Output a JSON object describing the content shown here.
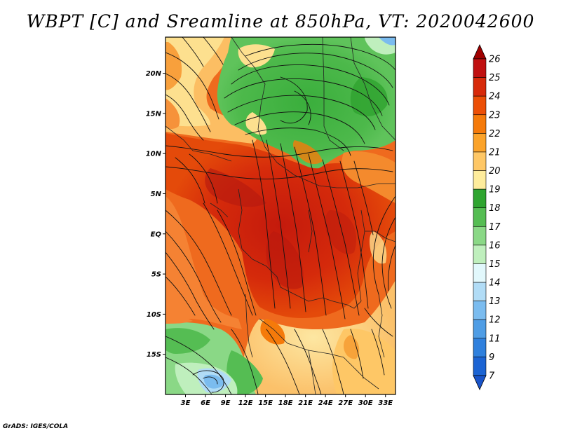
{
  "title": "WBPT [C] and Sreamline at 850hPa, VT: 2020042600",
  "footer": "GrADS: IGES/COLA",
  "map": {
    "lat_labels": [
      "20N",
      "15N",
      "10N",
      "5N",
      "EQ",
      "5S",
      "10S",
      "15S"
    ],
    "lon_labels": [
      "3E",
      "6E",
      "9E",
      "12E",
      "15E",
      "18E",
      "21E",
      "24E",
      "27E",
      "30E",
      "33E"
    ],
    "lat_range": [
      -20,
      24.5
    ],
    "lon_range": [
      0,
      34.5
    ]
  },
  "colorbar": {
    "levels": [
      "26",
      "25",
      "24",
      "23",
      "22",
      "21",
      "20",
      "19",
      "18",
      "17",
      "16",
      "15",
      "14",
      "13",
      "12",
      "11",
      "9",
      "7"
    ],
    "colors": [
      "#a00000",
      "#c01010",
      "#d72a0a",
      "#ec4f06",
      "#f57a0a",
      "#fba32a",
      "#fec766",
      "#feec9c",
      "#2fa530",
      "#55bd53",
      "#8ad886",
      "#bfefbd",
      "#e2f8fc",
      "#b1dcf6",
      "#7bbcef",
      "#4f9de5",
      "#2f80dd",
      "#1c64d3",
      "#1954c9"
    ]
  }
}
